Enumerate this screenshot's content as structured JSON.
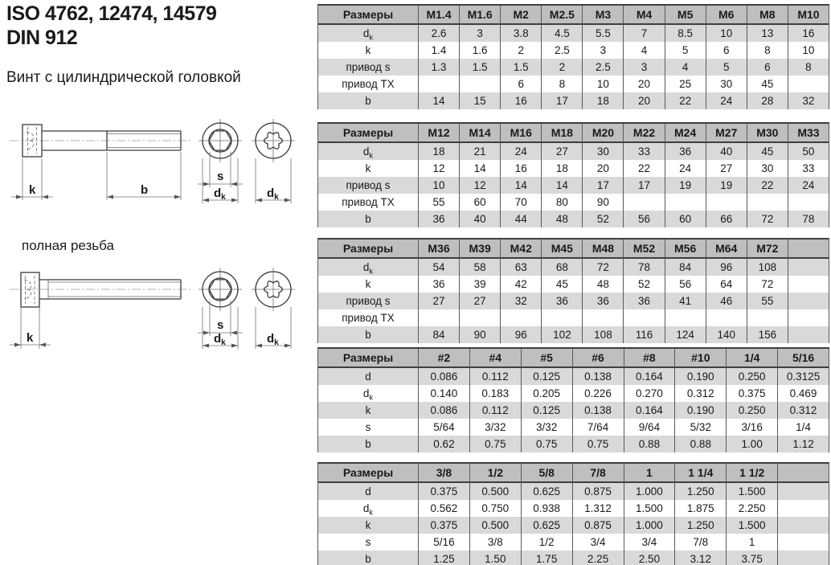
{
  "page": {
    "title_line1": "ISO 4762, 12474, 14579",
    "title_line2": "DIN 912",
    "subtitle": "Винт с цилиндрической головкой",
    "full_thread_note": "полная резьба"
  },
  "colors": {
    "table_header_bg": "#bfbfbf",
    "table_row_shaded_bg": "#d9d9d9",
    "table_border_dark": "#3f3f3f",
    "text": "#1a1a1a"
  },
  "drawing_labels": {
    "head_height": "k",
    "thread_length": "b",
    "socket_size": "s",
    "head_dia_main": "d",
    "head_dia_sub": "k"
  },
  "tables": [
    {
      "header_label": "Размеры",
      "columns": [
        "M1.4",
        "M1.6",
        "M2",
        "M2.5",
        "M3",
        "M4",
        "M5",
        "M6",
        "M8",
        "M10"
      ],
      "trailing_empty": false,
      "rows": [
        {
          "label": "d",
          "sub": "k",
          "values": [
            "2.6",
            "3",
            "3.8",
            "4.5",
            "5.5",
            "7",
            "8.5",
            "10",
            "13",
            "16"
          ]
        },
        {
          "label": "k",
          "values": [
            "1.4",
            "1.6",
            "2",
            "2.5",
            "3",
            "4",
            "5",
            "6",
            "8",
            "10"
          ]
        },
        {
          "label": "привод s",
          "values": [
            "1.3",
            "1.5",
            "1.5",
            "2",
            "2.5",
            "3",
            "4",
            "5",
            "6",
            "8"
          ]
        },
        {
          "label": "привод TX",
          "values": [
            "",
            "",
            "6",
            "8",
            "10",
            "20",
            "25",
            "30",
            "45",
            ""
          ]
        },
        {
          "label": "b",
          "values": [
            "14",
            "15",
            "16",
            "17",
            "18",
            "20",
            "22",
            "24",
            "28",
            "32"
          ]
        }
      ]
    },
    {
      "header_label": "Размеры",
      "columns": [
        "M12",
        "M14",
        "M16",
        "M18",
        "M20",
        "M22",
        "M24",
        "M27",
        "M30",
        "M33"
      ],
      "trailing_empty": false,
      "rows": [
        {
          "label": "d",
          "sub": "k",
          "values": [
            "18",
            "21",
            "24",
            "27",
            "30",
            "33",
            "36",
            "40",
            "45",
            "50"
          ]
        },
        {
          "label": "k",
          "values": [
            "12",
            "14",
            "16",
            "18",
            "20",
            "22",
            "24",
            "27",
            "30",
            "33"
          ]
        },
        {
          "label": "привод s",
          "values": [
            "10",
            "12",
            "14",
            "14",
            "17",
            "17",
            "19",
            "19",
            "22",
            "24"
          ]
        },
        {
          "label": "привод TX",
          "values": [
            "55",
            "60",
            "70",
            "80",
            "90",
            "",
            "",
            "",
            "",
            ""
          ]
        },
        {
          "label": "b",
          "values": [
            "36",
            "40",
            "44",
            "48",
            "52",
            "56",
            "60",
            "66",
            "72",
            "78"
          ]
        }
      ]
    },
    {
      "header_label": "Размеры",
      "columns": [
        "M36",
        "M39",
        "M42",
        "M45",
        "M48",
        "M52",
        "M56",
        "M64",
        "M72"
      ],
      "trailing_empty": true,
      "rows": [
        {
          "label": "d",
          "sub": "k",
          "values": [
            "54",
            "58",
            "63",
            "68",
            "72",
            "78",
            "84",
            "96",
            "108"
          ]
        },
        {
          "label": "k",
          "values": [
            "36",
            "39",
            "42",
            "45",
            "48",
            "52",
            "56",
            "64",
            "72"
          ]
        },
        {
          "label": "привод s",
          "values": [
            "27",
            "27",
            "32",
            "36",
            "36",
            "36",
            "41",
            "46",
            "55"
          ]
        },
        {
          "label": "привод TX",
          "values": [
            "",
            "",
            "",
            "",
            "",
            "",
            "",
            "",
            ""
          ]
        },
        {
          "label": "b",
          "values": [
            "84",
            "90",
            "96",
            "102",
            "108",
            "116",
            "124",
            "140",
            "156"
          ]
        }
      ]
    },
    {
      "header_label": "Размеры",
      "columns": [
        "#2",
        "#4",
        "#5",
        "#6",
        "#8",
        "#10",
        "1/4",
        "5/16"
      ],
      "trailing_empty": false,
      "rows": [
        {
          "label": "d",
          "values": [
            "0.086",
            "0.112",
            "0.125",
            "0.138",
            "0.164",
            "0.190",
            "0.250",
            "0.3125"
          ]
        },
        {
          "label": "d",
          "sub": "k",
          "values": [
            "0.140",
            "0.183",
            "0.205",
            "0.226",
            "0.270",
            "0.312",
            "0.375",
            "0.469"
          ]
        },
        {
          "label": "k",
          "values": [
            "0.086",
            "0.112",
            "0.125",
            "0.138",
            "0.164",
            "0.190",
            "0.250",
            "0.312"
          ]
        },
        {
          "label": "s",
          "values": [
            "5/64",
            "3/32",
            "3/32",
            "7/64",
            "9/64",
            "5/32",
            "3/16",
            "1/4"
          ]
        },
        {
          "label": "b",
          "values": [
            "0.62",
            "0.75",
            "0.75",
            "0.75",
            "0.88",
            "0.88",
            "1.00",
            "1.12"
          ]
        }
      ]
    },
    {
      "header_label": "Размеры",
      "columns": [
        "3/8",
        "1/2",
        "5/8",
        "7/8",
        "1",
        "1 1/4",
        "1 1/2"
      ],
      "trailing_empty": true,
      "rows": [
        {
          "label": "d",
          "values": [
            "0.375",
            "0.500",
            "0.625",
            "0.875",
            "1.000",
            "1.250",
            "1.500"
          ]
        },
        {
          "label": "d",
          "sub": "k",
          "values": [
            "0.562",
            "0.750",
            "0.938",
            "1.312",
            "1.500",
            "1.875",
            "2.250"
          ]
        },
        {
          "label": "k",
          "values": [
            "0.375",
            "0.500",
            "0.625",
            "0.875",
            "1.000",
            "1.250",
            "1.500"
          ]
        },
        {
          "label": "s",
          "values": [
            "5/16",
            "3/8",
            "1/2",
            "3/4",
            "3/4",
            "7/8",
            "1"
          ]
        },
        {
          "label": "b",
          "values": [
            "1.25",
            "1.50",
            "1.75",
            "2.25",
            "2.50",
            "3.12",
            "3.75"
          ]
        }
      ]
    }
  ]
}
